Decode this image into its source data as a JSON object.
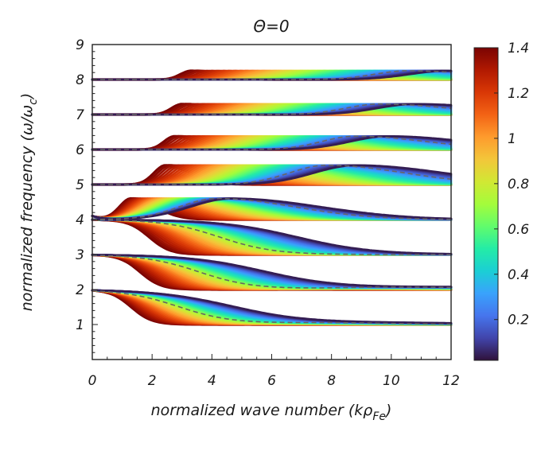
{
  "chart_data": {
    "type": "line",
    "title": "Θ=0",
    "xlabel": "normalized wave number (kρ",
    "xlabel_sub": "Fe",
    "xlabel_close": ")",
    "ylabel": "normalized frequency (ω/ω",
    "ylabel_sub": "c",
    "ylabel_close": ")",
    "xlim": [
      0,
      12
    ],
    "ylim": [
      0,
      9
    ],
    "xticks": [
      "0",
      "2",
      "4",
      "6",
      "8",
      "10",
      "12"
    ],
    "yticks": [
      "1",
      "2",
      "3",
      "4",
      "5",
      "6",
      "7",
      "8",
      "9"
    ],
    "colorbar": {
      "label_values": [
        "1.4",
        "1.2",
        "1",
        "0.8",
        "0.6",
        "0.4",
        "0.2"
      ],
      "range": [
        0.02,
        1.4
      ],
      "colors": [
        "#30123b",
        "#4145ab",
        "#4675ed",
        "#39a2fc",
        "#1bcfd4",
        "#24eca6",
        "#61fc6c",
        "#a4fc3b",
        "#d1e834",
        "#f3c63a",
        "#fe9b2d",
        "#f36315",
        "#d93806",
        "#b11901",
        "#7a0403"
      ]
    },
    "series_note": "Fan of dispersion curves per harmonic band; color = parameter value (0.02 .. 1.4); dashed gray = reference curve",
    "bands": [
      {
        "name": "band-1",
        "start": 2.0,
        "end": 1.0,
        "bump_center": 5.2,
        "bump_height": 0.05,
        "bump_width": 1.4,
        "fall_center": 1.3
      },
      {
        "name": "band-2",
        "start": 3.0,
        "end": 2.0,
        "bump_center": 7.0,
        "bump_height": 0.07,
        "bump_width": 1.6,
        "fall_center": 1.6
      },
      {
        "name": "band-3",
        "start": 4.0,
        "end": 3.0,
        "bump_center": 0,
        "bump_height": 0,
        "bump_width": 1,
        "fall_center": 1.9
      },
      {
        "name": "band-4",
        "start": 4.1,
        "end": 4.0,
        "bump_center": 1.3,
        "bump_height": 0.6,
        "bump_width": 1.0,
        "fall_center": 0
      },
      {
        "name": "band-5",
        "start": 5.0,
        "end": 5.0,
        "bump_center": 2.45,
        "bump_height": 0.55,
        "bump_width": 1.0,
        "fall_center": 0
      },
      {
        "name": "band-6",
        "start": 6.0,
        "end": 6.0,
        "bump_center": 2.75,
        "bump_height": 0.38,
        "bump_width": 0.9,
        "fall_center": 0
      },
      {
        "name": "band-7",
        "start": 7.0,
        "end": 7.0,
        "bump_center": 3.0,
        "bump_height": 0.3,
        "bump_width": 0.9,
        "fall_center": 0
      },
      {
        "name": "band-8",
        "start": 8.0,
        "end": 8.0,
        "bump_center": 3.3,
        "bump_height": 0.25,
        "bump_width": 0.9,
        "fall_center": 0
      }
    ]
  }
}
